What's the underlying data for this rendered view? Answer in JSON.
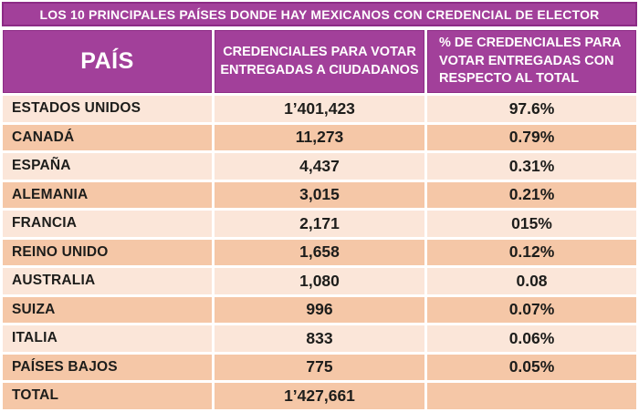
{
  "title": "LOS 10 PRINCIPALES PAÍSES DONDE HAY MEXICANOS CON CREDENCIAL DE ELECTOR",
  "table": {
    "headers": {
      "country": "PAÍS",
      "credentials": "CREDENCIALES PARA VOTAR\nENTREGADAS A CIUDADANOS",
      "percent": "% DE CREDENCIALES PARA\nVOTAR ENTREGADAS CON\nRESPECTO AL TOTAL"
    },
    "rows": [
      {
        "country": "ESTADOS UNIDOS",
        "credentials": "1’401,423",
        "percent": "97.6%"
      },
      {
        "country": "CANADÁ",
        "credentials": "11,273",
        "percent": "0.79%"
      },
      {
        "country": "ESPAÑA",
        "credentials": "4,437",
        "percent": "0.31%"
      },
      {
        "country": "ALEMANIA",
        "credentials": "3,015",
        "percent": "0.21%"
      },
      {
        "country": "FRANCIA",
        "credentials": "2,171",
        "percent": "015%"
      },
      {
        "country": "REINO UNIDO",
        "credentials": "1,658",
        "percent": "0.12%"
      },
      {
        "country": "AUSTRALIA",
        "credentials": "1,080",
        "percent": "0.08"
      },
      {
        "country": "SUIZA",
        "credentials": "996",
        "percent": "0.07%"
      },
      {
        "country": "ITALIA",
        "credentials": "833",
        "percent": "0.06%"
      },
      {
        "country": "PAÍSES BAJOS",
        "credentials": "775",
        "percent": "0.05%"
      },
      {
        "country": "TOTAL",
        "credentials": "1’427,661",
        "percent": ""
      }
    ]
  },
  "colors": {
    "header_purple": "#a2409a",
    "header_purple_border": "#8c2b85",
    "row_light": "#fbe6d9",
    "row_dark": "#f5c7a7",
    "text_dark": "#1d1d1b",
    "text_white": "#ffffff"
  },
  "chart_data": {
    "type": "table",
    "title": "LOS 10 PRINCIPALES PAÍSES DONDE HAY MEXICANOS CON CREDENCIAL DE ELECTOR",
    "columns": [
      "PAÍS",
      "CREDENCIALES PARA VOTAR ENTREGADAS A CIUDADANOS",
      "% DE CREDENCIALES PARA VOTAR ENTREGADAS CON RESPECTO AL TOTAL"
    ],
    "rows": [
      [
        "ESTADOS UNIDOS",
        "1’401,423",
        "97.6%"
      ],
      [
        "CANADÁ",
        "11,273",
        "0.79%"
      ],
      [
        "ESPAÑA",
        "4,437",
        "0.31%"
      ],
      [
        "ALEMANIA",
        "3,015",
        "0.21%"
      ],
      [
        "FRANCIA",
        "2,171",
        "015%"
      ],
      [
        "REINO UNIDO",
        "1,658",
        "0.12%"
      ],
      [
        "AUSTRALIA",
        "1,080",
        "0.08"
      ],
      [
        "SUIZA",
        "996",
        "0.07%"
      ],
      [
        "ITALIA",
        "833",
        "0.06%"
      ],
      [
        "PAÍSES BAJOS",
        "775",
        "0.05%"
      ],
      [
        "TOTAL",
        "1’427,661",
        ""
      ]
    ]
  }
}
